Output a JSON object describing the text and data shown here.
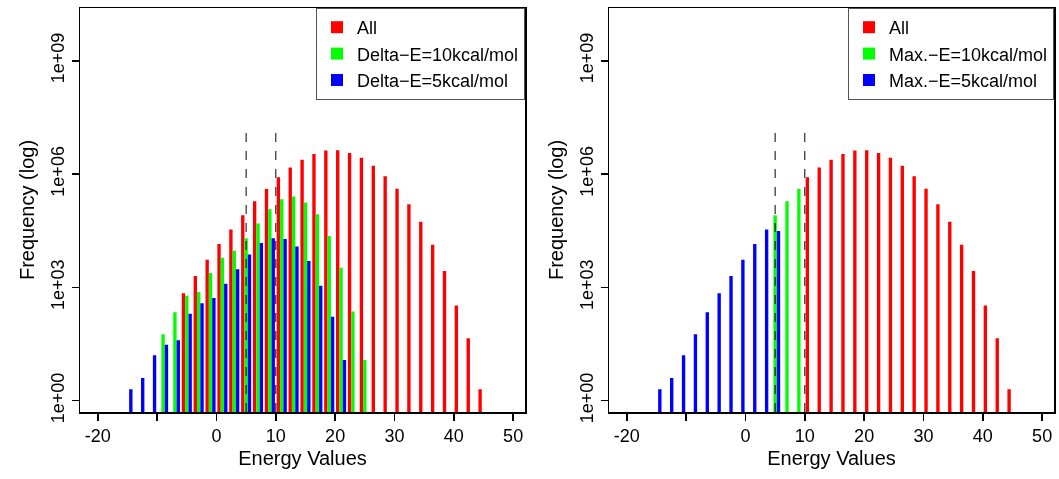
{
  "chart_data": [
    {
      "type": "bar",
      "xlabel": "Energy Values",
      "ylabel": "Frequency (log)",
      "log": "y",
      "grid": false,
      "legend": "top right",
      "x": [
        -15,
        -13,
        -11,
        -9,
        -7,
        -5,
        -3,
        -1,
        1,
        3,
        5,
        7,
        9,
        11,
        13,
        15,
        17,
        19,
        21,
        23,
        25,
        27,
        29,
        31,
        33,
        35,
        37,
        39,
        41,
        43,
        45
      ],
      "xlim": [
        -23,
        52
      ],
      "xticks": [
        -20,
        {
          "value": -10,
          "label": null
        },
        0,
        10,
        20,
        30,
        40,
        50
      ],
      "ylim": [
        0.5,
        25000000000
      ],
      "yticks": [
        {
          "value": 1,
          "label": "1e+00"
        },
        {
          "value": 1000,
          "label": "1e+03"
        },
        {
          "value": 1000000,
          "label": "1e+06"
        },
        {
          "value": 1000000000,
          "label": "1e+09"
        }
      ],
      "ref_lines": [
        {
          "axis": "x",
          "value": 5,
          "label": null,
          "color": "#000000",
          "line_style": "dashed"
        },
        {
          "axis": "x",
          "value": 10,
          "label": null,
          "color": "#000000",
          "line_style": "dashed"
        }
      ],
      "series": [
        {
          "name": "All",
          "color": "#ff0000",
          "values": [
            null,
            null,
            null,
            null,
            null,
            700,
            2000,
            5400,
            14000,
            34000,
            81000,
            190000,
            400000,
            820000,
            1500000,
            2400000,
            3400000,
            4200000,
            4300000,
            3600000,
            2700000,
            1660000,
            870000,
            407000,
            158000,
            55000,
            13500,
            2700,
            330,
            45,
            2
          ]
        },
        {
          "name": "Delta−E=10kcal/mol",
          "color": "#00ff00",
          "values": [
            null,
            null,
            null,
            57,
            220,
            600,
            750,
            2400,
            6100,
            9300,
            20000,
            49000,
            117000,
            215000,
            255000,
            177000,
            86000,
            23000,
            3300,
            230,
            12,
            null,
            null,
            null,
            null,
            null,
            null,
            null,
            null,
            null,
            null
          ]
        },
        {
          "name": "Delta−E=5kcal/mol",
          "color": "#0000ff",
          "values": [
            2,
            4,
            16,
            30,
            40,
            200,
            380,
            520,
            1240,
            3000,
            7400,
            15000,
            20000,
            19000,
            12000,
            5000,
            1100,
            166,
            12,
            null,
            null,
            null,
            null,
            null,
            null,
            null,
            null,
            null,
            null,
            null,
            null
          ]
        }
      ]
    },
    {
      "type": "bar",
      "xlabel": "Energy Values",
      "ylabel": "Frequency (log)",
      "log": "y",
      "grid": false,
      "legend": "top right",
      "x": [
        -15,
        -13,
        -11,
        -9,
        -7,
        -5,
        -3,
        -1,
        1,
        3,
        5,
        7,
        9,
        11,
        13,
        15,
        17,
        19,
        21,
        23,
        25,
        27,
        29,
        31,
        33,
        35,
        37,
        39,
        41,
        43,
        45
      ],
      "xlim": [
        -23,
        52
      ],
      "xticks": [
        -20,
        {
          "value": -10,
          "label": null
        },
        0,
        10,
        20,
        30,
        40,
        50
      ],
      "ylim": [
        0.5,
        25000000000
      ],
      "yticks": [
        {
          "value": 1,
          "label": "1e+00"
        },
        {
          "value": 1000,
          "label": "1e+03"
        },
        {
          "value": 1000000,
          "label": "1e+06"
        },
        {
          "value": 1000000000,
          "label": "1e+09"
        }
      ],
      "ref_lines": [
        {
          "axis": "x",
          "value": 5,
          "label": null,
          "color": "#000000",
          "line_style": "dashed"
        },
        {
          "axis": "x",
          "value": 10,
          "label": null,
          "color": "#000000",
          "line_style": "dashed"
        }
      ],
      "series": [
        {
          "name": "All",
          "color": "#ff0000",
          "values": [
            null,
            null,
            null,
            null,
            null,
            null,
            null,
            null,
            null,
            null,
            null,
            null,
            null,
            820000,
            1500000,
            2400000,
            3400000,
            4200000,
            4300000,
            3600000,
            2700000,
            1660000,
            870000,
            407000,
            158000,
            55000,
            13500,
            2700,
            330,
            45,
            2
          ]
        },
        {
          "name": "Max.−E=10kcal/mol",
          "color": "#00ff00",
          "values": [
            null,
            null,
            null,
            null,
            null,
            null,
            null,
            null,
            null,
            null,
            81000,
            190000,
            400000,
            null,
            null,
            null,
            null,
            null,
            null,
            null,
            null,
            null,
            null,
            null,
            null,
            null,
            null,
            null,
            null,
            null,
            null
          ]
        },
        {
          "name": "Max.−E=5kcal/mol",
          "color": "#0000ff",
          "values": [
            2,
            4,
            16,
            57,
            220,
            700,
            2000,
            5400,
            14000,
            34000,
            31000,
            null,
            null,
            null,
            null,
            null,
            null,
            null,
            null,
            null,
            null,
            null,
            null,
            null,
            null,
            null,
            null,
            null,
            null,
            null,
            null
          ]
        }
      ]
    }
  ]
}
